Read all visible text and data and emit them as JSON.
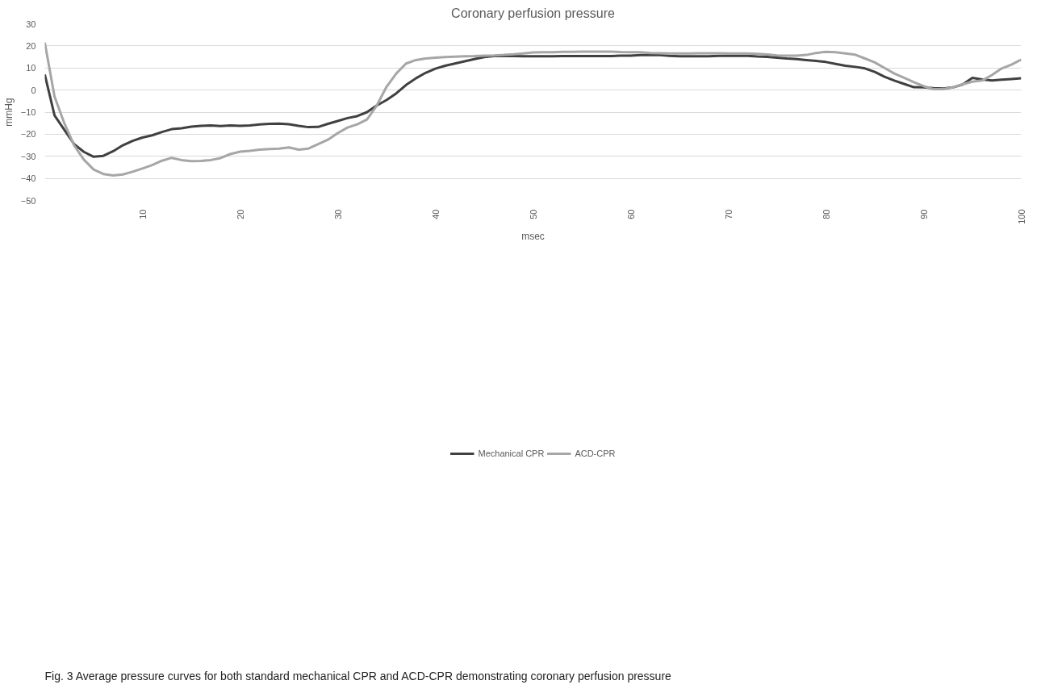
{
  "chart_data": {
    "type": "line",
    "title": "Coronary perfusion pressure",
    "xlabel": "msec",
    "ylabel": "mmHg",
    "x": [
      0,
      1,
      2,
      3,
      4,
      5,
      6,
      7,
      8,
      9,
      10,
      11,
      12,
      13,
      14,
      15,
      16,
      17,
      18,
      19,
      20,
      21,
      22,
      23,
      24,
      25,
      26,
      27,
      28,
      29,
      30,
      31,
      32,
      33,
      34,
      35,
      36,
      37,
      38,
      39,
      40,
      41,
      42,
      43,
      44,
      45,
      46,
      47,
      48,
      49,
      50,
      51,
      52,
      53,
      54,
      55,
      56,
      57,
      58,
      59,
      60,
      61,
      62,
      63,
      64,
      65,
      66,
      67,
      68,
      69,
      70,
      71,
      72,
      73,
      74,
      75,
      76,
      77,
      78,
      79,
      80,
      81,
      82,
      83,
      84,
      85,
      86,
      87,
      88,
      89,
      90,
      91,
      92,
      93,
      94,
      95,
      96,
      97,
      98,
      99,
      100
    ],
    "series": [
      {
        "name": "Mechanical CPR",
        "color": "#404040",
        "values": [
          7,
          -11.5,
          -18,
          -24.5,
          -28,
          -30.2,
          -29.8,
          -27.7,
          -25,
          -23,
          -21.5,
          -20.5,
          -19,
          -17.7,
          -17.3,
          -16.6,
          -16.2,
          -16,
          -16.3,
          -16,
          -16.2,
          -16,
          -15.6,
          -15.3,
          -15.2,
          -15.5,
          -16.2,
          -16.8,
          -16.7,
          -15.3,
          -14,
          -12.7,
          -11.8,
          -10,
          -7,
          -4.5,
          -1.5,
          2.3,
          5.3,
          7.8,
          9.7,
          11,
          12,
          13,
          14,
          14.9,
          15.4,
          15.5,
          15.4,
          15.3,
          15.3,
          15.3,
          15.3,
          15.4,
          15.4,
          15.4,
          15.4,
          15.4,
          15.4,
          15.6,
          15.6,
          15.8,
          15.8,
          15.8,
          15.5,
          15.3,
          15.3,
          15.3,
          15.3,
          15.5,
          15.5,
          15.5,
          15.5,
          15.2,
          15,
          14.7,
          14.3,
          14,
          13.6,
          13.2,
          12.7,
          11.8,
          11,
          10.5,
          9.8,
          8.2,
          6,
          4.3,
          2.8,
          1.3,
          1.2,
          0.9,
          0.7,
          1.2,
          2.5,
          5.5,
          4.8,
          4.3,
          4.7,
          5,
          5.3
        ]
      },
      {
        "name": "ACD-CPR",
        "color": "#a6a6a6",
        "values": [
          21.5,
          -3,
          -15,
          -25,
          -31.5,
          -36,
          -38,
          -38.7,
          -38.2,
          -37,
          -35.5,
          -34,
          -32,
          -30.7,
          -31.7,
          -32.2,
          -32.1,
          -31.7,
          -30.8,
          -29,
          -27.9,
          -27.5,
          -27,
          -26.7,
          -26.5,
          -26,
          -27,
          -26.5,
          -24.5,
          -22.5,
          -19.5,
          -17,
          -15.5,
          -13.3,
          -7,
          1.5,
          7.5,
          12,
          13.6,
          14.3,
          14.7,
          14.9,
          15.1,
          15.3,
          15.4,
          15.6,
          15.7,
          15.9,
          16.2,
          16.6,
          17,
          17.1,
          17.1,
          17.3,
          17.3,
          17.4,
          17.4,
          17.4,
          17.4,
          17.2,
          17.1,
          17.1,
          16.8,
          16.7,
          16.6,
          16.6,
          16.6,
          16.7,
          16.7,
          16.7,
          16.6,
          16.6,
          16.6,
          16.4,
          16.1,
          15.7,
          15.6,
          15.6,
          15.9,
          16.8,
          17.3,
          17.1,
          16.6,
          16,
          14.3,
          12.5,
          10,
          7.5,
          5.6,
          3.6,
          1.8,
          0.4,
          0.4,
          1.2,
          2.6,
          3.8,
          4.3,
          6.8,
          9.8,
          11.5,
          13.8
        ]
      }
    ],
    "xlim": [
      0,
      100
    ],
    "xticks": [
      10,
      20,
      30,
      40,
      50,
      60,
      70,
      80,
      90,
      100
    ],
    "ylim": [
      -50,
      30
    ],
    "yticks": [
      -50,
      -40,
      -30,
      -20,
      -10,
      0,
      10,
      20,
      30
    ],
    "grid": "y",
    "legend": "bottom",
    "line_style": "solid",
    "marker": "none",
    "annotations": [
      "Fig. 3 Average pressure curves for both standard mechanical CPR and ACD-CPR demonstrating coronary perfusion pressure"
    ]
  }
}
